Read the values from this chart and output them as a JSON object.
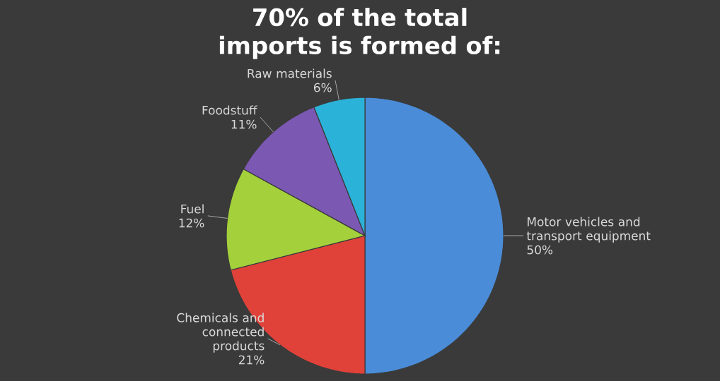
{
  "chart_data": {
    "type": "pie",
    "title": "70% of the total imports is formed of:",
    "categories": [
      "Motor vehicles and transport equipment",
      "Chemicals and connected products",
      "Fuel",
      "Foodstuff",
      "Raw materials"
    ],
    "values": [
      50,
      21,
      12,
      11,
      6
    ],
    "value_labels": [
      "50%",
      "21%",
      "12%",
      "11%",
      "6%"
    ],
    "colors": [
      "#4a8cd8",
      "#e0423a",
      "#a4d03c",
      "#7b58b2",
      "#2bb2d8"
    ]
  }
}
